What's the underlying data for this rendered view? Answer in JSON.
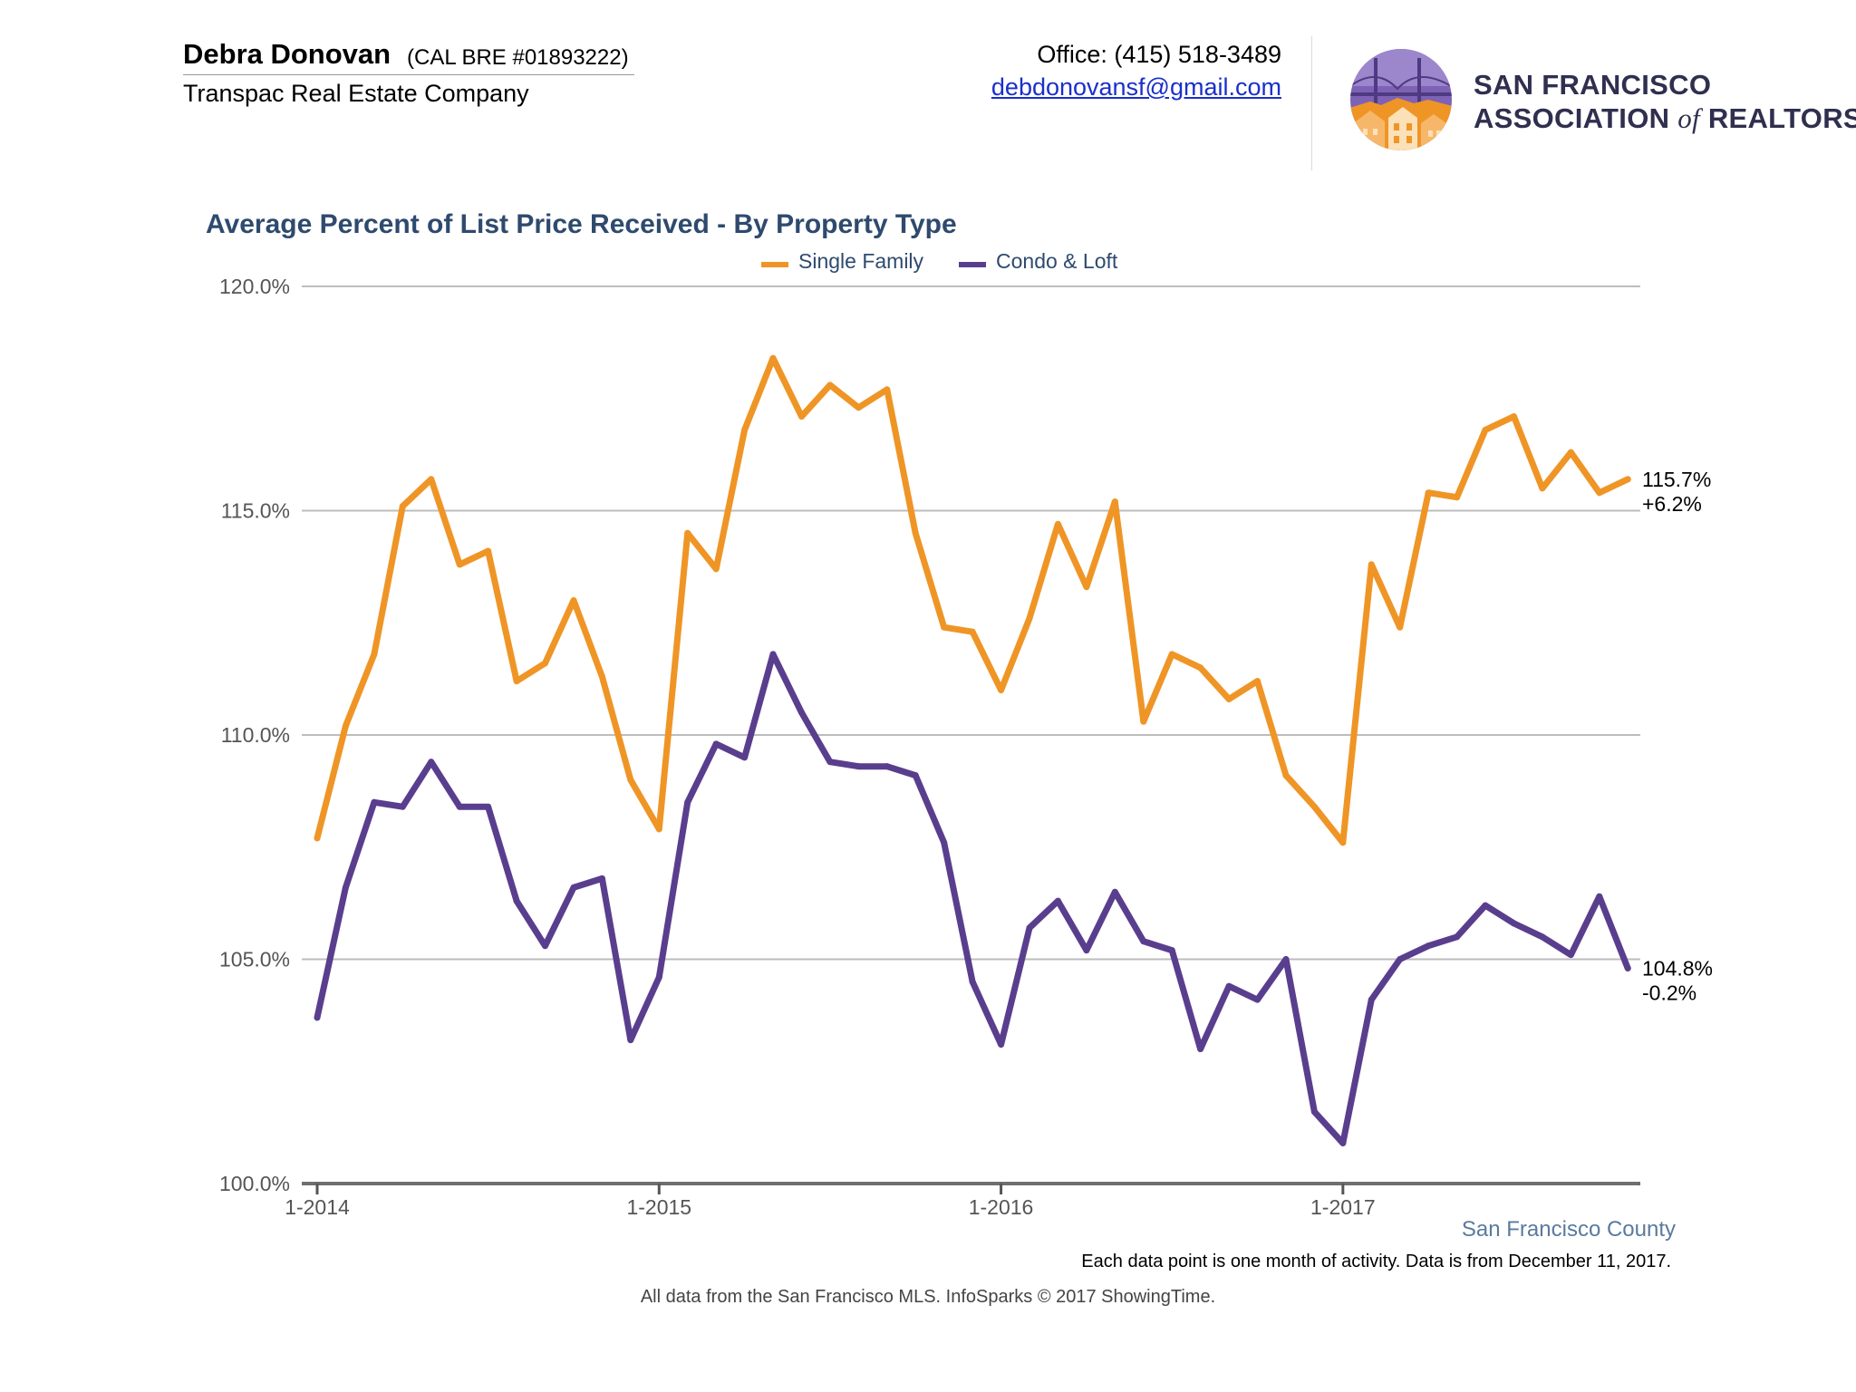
{
  "header": {
    "agent_name": "Debra Donovan",
    "agent_license": "(CAL BRE #01893222)",
    "company": "Transpac Real Estate Company",
    "office_phone": "Office: (415) 518-3489",
    "email": "debdonovansf@gmail.com",
    "logo_line1": "SAN FRANCISCO",
    "logo_line2_a": "ASSOCIATION ",
    "logo_line2_of": "of",
    "logo_line2_b": " REALTORS",
    "logo_reg": "®",
    "logo_icon": "golden-gate-bridge-houses-emblem"
  },
  "chart_data": {
    "type": "line",
    "title": "Average Percent of List Price Received - By Property Type",
    "legend_position": "top-center",
    "grid": true,
    "ylim": [
      100,
      120
    ],
    "y_ticks": [
      100,
      105,
      110,
      115,
      120
    ],
    "y_tick_labels": [
      "100.0%",
      "105.0%",
      "110.0%",
      "115.0%",
      "120.0%"
    ],
    "x_tick_labels": [
      "1-2014",
      "1-2015",
      "1-2016",
      "1-2017"
    ],
    "x_tick_months": [
      "2014-01",
      "2015-01",
      "2016-01",
      "2017-01"
    ],
    "x_months": [
      "2014-01",
      "2014-02",
      "2014-03",
      "2014-04",
      "2014-05",
      "2014-06",
      "2014-07",
      "2014-08",
      "2014-09",
      "2014-10",
      "2014-11",
      "2014-12",
      "2015-01",
      "2015-02",
      "2015-03",
      "2015-04",
      "2015-05",
      "2015-06",
      "2015-07",
      "2015-08",
      "2015-09",
      "2015-10",
      "2015-11",
      "2015-12",
      "2016-01",
      "2016-02",
      "2016-03",
      "2016-04",
      "2016-05",
      "2016-06",
      "2016-07",
      "2016-08",
      "2016-09",
      "2016-10",
      "2016-11",
      "2016-12",
      "2017-01",
      "2017-02",
      "2017-03",
      "2017-04",
      "2017-05",
      "2017-06",
      "2017-07",
      "2017-08",
      "2017-09",
      "2017-10",
      "2017-11"
    ],
    "series": [
      {
        "name": "Single Family",
        "color": "#ef9526",
        "end_label": "115.7%",
        "change_label": "+6.2%",
        "values": [
          107.7,
          110.2,
          111.8,
          115.1,
          115.7,
          113.8,
          114.1,
          111.2,
          111.6,
          113.0,
          111.3,
          109.0,
          107.9,
          114.5,
          113.7,
          116.8,
          118.4,
          117.1,
          117.8,
          117.3,
          117.7,
          114.5,
          112.4,
          112.3,
          111.0,
          112.6,
          114.7,
          113.3,
          115.2,
          110.3,
          111.8,
          111.5,
          110.8,
          111.2,
          109.1,
          108.4,
          107.6,
          113.8,
          112.4,
          115.4,
          115.3,
          116.8,
          117.1,
          115.5,
          116.3,
          115.4,
          115.7
        ]
      },
      {
        "name": "Condo & Loft",
        "color": "#5a3e8e",
        "end_label": "104.8%",
        "change_label": "-0.2%",
        "values": [
          103.7,
          106.6,
          108.5,
          108.4,
          109.4,
          108.4,
          108.4,
          106.3,
          105.3,
          106.6,
          106.8,
          103.2,
          104.6,
          108.5,
          109.8,
          109.5,
          111.8,
          110.5,
          109.4,
          109.3,
          109.3,
          109.1,
          107.6,
          104.5,
          103.1,
          105.7,
          106.3,
          105.2,
          106.5,
          105.4,
          105.2,
          103.0,
          104.4,
          104.1,
          105.0,
          101.6,
          100.9,
          104.1,
          105.0,
          105.3,
          105.5,
          106.2,
          105.8,
          105.5,
          105.1,
          106.4,
          104.8
        ]
      }
    ]
  },
  "footer": {
    "region": "San Francisco County",
    "note": "Each data point is one month of activity. Data is from December 11, 2017.",
    "source": "All data from the San Francisco MLS. InfoSparks © 2017 ShowingTime."
  }
}
